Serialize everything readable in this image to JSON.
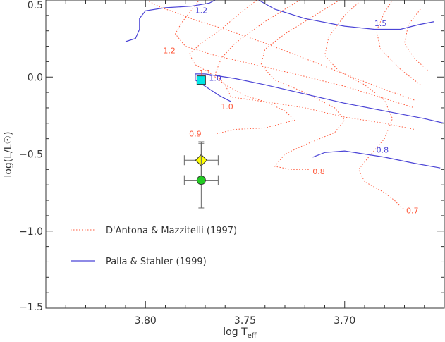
{
  "chart_data": {
    "type": "scatter",
    "xlabel": {
      "main": "log T",
      "sub": "eff"
    },
    "ylabel": "log(L/L☉)",
    "xlim": [
      3.85,
      3.65
    ],
    "ylim": [
      -1.5,
      0.5
    ],
    "x_ticks": [
      {
        "value": 3.8,
        "label": "3.80"
      },
      {
        "value": 3.75,
        "label": "3.75"
      },
      {
        "value": 3.7,
        "label": "3.70"
      }
    ],
    "y_ticks": [
      {
        "value": 0.5,
        "label": "0.5"
      },
      {
        "value": 0.0,
        "label": "0.0"
      },
      {
        "value": -0.5,
        "label": "−0.5"
      },
      {
        "value": -1.0,
        "label": "−1.0"
      },
      {
        "value": -1.5,
        "label": "−1.5"
      }
    ],
    "colors": {
      "dantona": "#ff5a3c",
      "palla": "#4b44d6",
      "axis": "#333333"
    },
    "legend": [
      {
        "label": "D'Antona & Mazzitelli (1997)",
        "style": "dotted",
        "color": "#ff5a3c"
      },
      {
        "label": "Palla & Stahler (1999)",
        "style": "solid",
        "color": "#4b44d6"
      }
    ],
    "tracks_dantona": [
      {
        "label": "1.2",
        "label_at": [
          3.788,
          0.155
        ],
        "points": [
          [
            3.8,
            0.52
          ],
          [
            3.798,
            0.49
          ],
          [
            3.792,
            0.45
          ],
          [
            3.785,
            0.42
          ],
          [
            3.775,
            0.37
          ],
          [
            3.76,
            0.31
          ],
          [
            3.74,
            0.22
          ],
          [
            3.72,
            0.12
          ],
          [
            3.7,
            0.02
          ],
          [
            3.68,
            -0.08
          ],
          [
            3.665,
            -0.15
          ]
        ]
      },
      {
        "label": "1.1",
        "label_at": [
          3.77,
          0.01
        ],
        "points": [
          [
            3.77,
            0.55
          ],
          [
            3.776,
            0.45
          ],
          [
            3.782,
            0.35
          ],
          [
            3.785,
            0.28
          ],
          [
            3.78,
            0.2
          ],
          [
            3.765,
            0.14
          ],
          [
            3.745,
            0.08
          ],
          [
            3.725,
            0.02
          ],
          [
            3.7,
            -0.06
          ],
          [
            3.68,
            -0.14
          ],
          [
            3.665,
            -0.2
          ]
        ]
      },
      {
        "label": "1.0",
        "label_at": [
          3.759,
          -0.21
        ],
        "points": [
          [
            3.742,
            0.52
          ],
          [
            3.752,
            0.42
          ],
          [
            3.764,
            0.29
          ],
          [
            3.772,
            0.22
          ],
          [
            3.778,
            0.15
          ],
          [
            3.775,
            0.08
          ],
          [
            3.768,
            0.03
          ],
          [
            3.76,
            -0.05
          ],
          [
            3.757,
            -0.13
          ],
          [
            3.74,
            -0.16
          ],
          [
            3.72,
            -0.2
          ],
          [
            3.7,
            -0.26
          ],
          [
            3.68,
            -0.3
          ],
          [
            3.665,
            -0.34
          ]
        ]
      },
      {
        "label": "0.9",
        "label_at": [
          3.775,
          -0.385
        ],
        "points": [
          [
            3.72,
            0.52
          ],
          [
            3.74,
            0.36
          ],
          [
            3.755,
            0.22
          ],
          [
            3.762,
            0.12
          ],
          [
            3.765,
            0.02
          ],
          [
            3.76,
            -0.05
          ],
          [
            3.75,
            -0.12
          ],
          [
            3.74,
            -0.16
          ],
          [
            3.73,
            -0.22
          ],
          [
            3.725,
            -0.28
          ],
          [
            3.74,
            -0.33
          ],
          [
            3.755,
            -0.34
          ],
          [
            3.765,
            -0.37
          ]
        ]
      },
      {
        "label": "0.8",
        "label_at": [
          3.713,
          -0.63
        ],
        "points": [
          [
            3.7,
            0.52
          ],
          [
            3.715,
            0.4
          ],
          [
            3.73,
            0.28
          ],
          [
            3.74,
            0.18
          ],
          [
            3.742,
            0.08
          ],
          [
            3.735,
            -0.02
          ],
          [
            3.72,
            -0.1
          ],
          [
            3.705,
            -0.2
          ],
          [
            3.7,
            -0.28
          ],
          [
            3.705,
            -0.36
          ],
          [
            3.72,
            -0.44
          ],
          [
            3.73,
            -0.5
          ],
          [
            3.735,
            -0.58
          ],
          [
            3.727,
            -0.6
          ],
          [
            3.718,
            -0.6
          ]
        ]
      },
      {
        "label": "0.7",
        "label_at": [
          3.666,
          -0.885
        ],
        "points": [
          [
            3.69,
            0.52
          ],
          [
            3.7,
            0.4
          ],
          [
            3.708,
            0.26
          ],
          [
            3.71,
            0.14
          ],
          [
            3.703,
            0.04
          ],
          [
            3.69,
            -0.05
          ],
          [
            3.68,
            -0.15
          ],
          [
            3.676,
            -0.27
          ],
          [
            3.68,
            -0.4
          ],
          [
            3.688,
            -0.52
          ],
          [
            3.693,
            -0.6
          ],
          [
            3.69,
            -0.68
          ],
          [
            3.68,
            -0.75
          ],
          [
            3.675,
            -0.8
          ],
          [
            3.672,
            -0.84
          ],
          [
            3.67,
            -0.86
          ]
        ]
      },
      {
        "label": "",
        "points": [
          [
            3.675,
            0.52
          ],
          [
            3.68,
            0.42
          ],
          [
            3.684,
            0.3
          ],
          [
            3.682,
            0.18
          ],
          [
            3.672,
            0.05
          ],
          [
            3.662,
            -0.05
          ]
        ]
      },
      {
        "label": "",
        "points": [
          [
            3.662,
            0.44
          ],
          [
            3.668,
            0.34
          ],
          [
            3.67,
            0.22
          ],
          [
            3.665,
            0.12
          ],
          [
            3.658,
            0.04
          ]
        ]
      }
    ],
    "tracks_palla": [
      {
        "label": "1.2",
        "label_at": [
          3.772,
          0.415
        ],
        "points": [
          [
            3.81,
            0.23
          ],
          [
            3.805,
            0.25
          ],
          [
            3.803,
            0.31
          ],
          [
            3.803,
            0.38
          ],
          [
            3.8,
            0.43
          ],
          [
            3.79,
            0.45
          ],
          [
            3.777,
            0.46
          ],
          [
            3.768,
            0.48
          ],
          [
            3.762,
            0.52
          ]
        ]
      },
      {
        "label": "1.5",
        "label_at": [
          3.682,
          0.33
        ],
        "points": [
          [
            3.746,
            0.52
          ],
          [
            3.735,
            0.44
          ],
          [
            3.72,
            0.38
          ],
          [
            3.7,
            0.33
          ],
          [
            3.685,
            0.31
          ],
          [
            3.672,
            0.31
          ],
          [
            3.663,
            0.34
          ],
          [
            3.655,
            0.36
          ]
        ]
      },
      {
        "label": "1.0",
        "label_at": [
          3.765,
          -0.025
        ],
        "points": [
          [
            3.757,
            -0.16
          ],
          [
            3.763,
            -0.12
          ],
          [
            3.77,
            -0.06
          ],
          [
            3.775,
            -0.02
          ],
          [
            3.775,
            0.02
          ],
          [
            3.77,
            0.02
          ],
          [
            3.755,
            -0.01
          ],
          [
            3.74,
            -0.05
          ],
          [
            3.72,
            -0.11
          ],
          [
            3.7,
            -0.17
          ],
          [
            3.68,
            -0.22
          ],
          [
            3.66,
            -0.27
          ],
          [
            3.65,
            -0.3
          ]
        ]
      },
      {
        "label": "0.8",
        "label_at": [
          3.681,
          -0.49
        ],
        "points": [
          [
            3.716,
            -0.52
          ],
          [
            3.71,
            -0.49
          ],
          [
            3.7,
            -0.48
          ],
          [
            3.68,
            -0.52
          ],
          [
            3.665,
            -0.56
          ],
          [
            3.652,
            -0.59
          ]
        ]
      }
    ],
    "points": [
      {
        "name": "square",
        "x": 3.772,
        "y": -0.02,
        "fill": "#00e5e5",
        "shape": "square"
      },
      {
        "name": "diamond",
        "x": 3.772,
        "y": -0.54,
        "fill": "#ffff00",
        "shape": "diamond",
        "xerr": 0.0085,
        "yerr_plus": 0.11,
        "yerr_minus": 0.11
      },
      {
        "name": "circle",
        "x": 3.772,
        "y": -0.67,
        "fill": "#22cc22",
        "shape": "circle",
        "xerr": 0.0085,
        "yerr_plus": 0.25,
        "yerr_minus": 0.18
      }
    ]
  }
}
